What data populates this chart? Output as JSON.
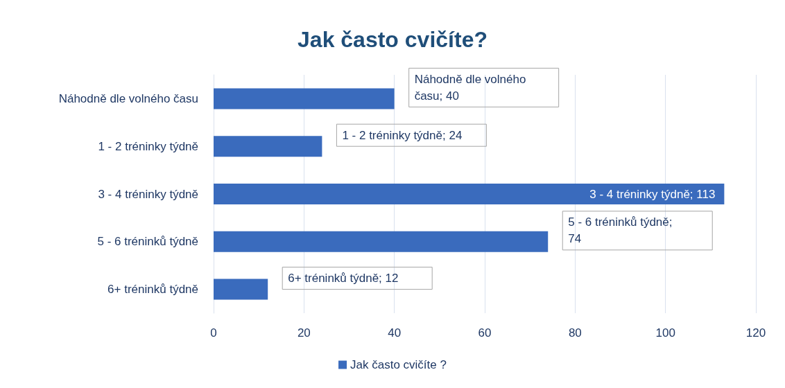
{
  "chart_data": {
    "type": "bar",
    "orientation": "horizontal",
    "title": "Jak často cvičíte?",
    "categories": [
      "Náhodně dle volného času",
      "1 - 2 tréninky týdně",
      "3 - 4 tréninky týdně",
      "5 - 6 tréninků týdně",
      "6+ tréninků týdně"
    ],
    "series": [
      {
        "name": "Jak často cvičíte ?",
        "color": "#3a6bbd",
        "values": [
          40,
          24,
          113,
          74,
          12
        ],
        "value_labels": [
          "Náhodně dle volného času; 40",
          "1 - 2 tréninky týdně; 24",
          "3 - 4 tréninky týdně; 113",
          "5 - 6 tréninků týdně; 74",
          "6+ tréninků týdně; 12"
        ]
      }
    ],
    "xlim": [
      0,
      120
    ],
    "xticks": [
      0,
      20,
      40,
      60,
      80,
      100,
      120
    ],
    "grid": "x",
    "legend": "bottom"
  }
}
